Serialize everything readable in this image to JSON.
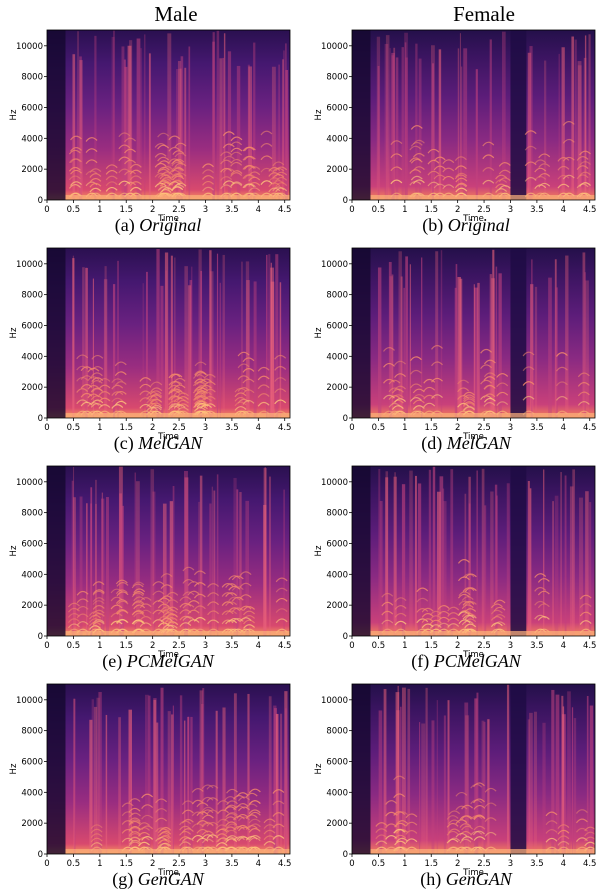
{
  "columns": [
    "Male",
    "Female"
  ],
  "chart_data": [
    {
      "type": "heatmap",
      "id": "a",
      "caption_label": "(a)",
      "caption_name": "Original",
      "voice": "male",
      "xlabel": "Time",
      "ylabel": "Hz",
      "xlim": [
        0,
        4.6
      ],
      "ylim": [
        0,
        11025
      ],
      "xticks": [
        "0",
        "0.5",
        "1",
        "1.5",
        "2",
        "2.5",
        "3",
        "3.5",
        "4",
        "4.5"
      ],
      "yticks": [
        "0",
        "2000",
        "4000",
        "6000",
        "8000",
        "10000"
      ],
      "colormap": "magma"
    },
    {
      "type": "heatmap",
      "id": "b",
      "caption_label": "(b)",
      "caption_name": "Original",
      "voice": "female",
      "xlabel": "Time",
      "ylabel": "Hz",
      "xlim": [
        0,
        4.6
      ],
      "ylim": [
        0,
        11025
      ],
      "xticks": [
        "0",
        "0.5",
        "1",
        "1.5",
        "2",
        "2.5",
        "3",
        "3.5",
        "4",
        "4.5"
      ],
      "yticks": [
        "0",
        "2000",
        "4000",
        "6000",
        "8000",
        "10000"
      ],
      "colormap": "magma"
    },
    {
      "type": "heatmap",
      "id": "c",
      "caption_label": "(c)",
      "caption_name": "MelGAN",
      "voice": "male",
      "xlabel": "Time",
      "ylabel": "Hz",
      "xlim": [
        0,
        4.6
      ],
      "ylim": [
        0,
        11025
      ],
      "xticks": [
        "0",
        "0.5",
        "1",
        "1.5",
        "2",
        "2.5",
        "3",
        "3.5",
        "4",
        "4.5"
      ],
      "yticks": [
        "0",
        "2000",
        "4000",
        "6000",
        "8000",
        "10000"
      ],
      "colormap": "magma"
    },
    {
      "type": "heatmap",
      "id": "d",
      "caption_label": "(d)",
      "caption_name": "MelGAN",
      "voice": "female",
      "xlabel": "Time",
      "ylabel": "Hz",
      "xlim": [
        0,
        4.6
      ],
      "ylim": [
        0,
        11025
      ],
      "xticks": [
        "0",
        "0.5",
        "1",
        "1.5",
        "2",
        "2.5",
        "3",
        "3.5",
        "4",
        "4.5"
      ],
      "yticks": [
        "0",
        "2000",
        "4000",
        "6000",
        "8000",
        "10000"
      ],
      "colormap": "magma"
    },
    {
      "type": "heatmap",
      "id": "e",
      "caption_label": "(e)",
      "caption_name": "PCMelGAN",
      "voice": "male",
      "xlabel": "Time",
      "ylabel": "Hz",
      "xlim": [
        0,
        4.6
      ],
      "ylim": [
        0,
        11025
      ],
      "xticks": [
        "0",
        "0.5",
        "1",
        "1.5",
        "2",
        "2.5",
        "3",
        "3.5",
        "4",
        "4.5"
      ],
      "yticks": [
        "0",
        "2000",
        "4000",
        "6000",
        "8000",
        "10000"
      ],
      "colormap": "magma"
    },
    {
      "type": "heatmap",
      "id": "f",
      "caption_label": "(f)",
      "caption_name": "PCMelGAN",
      "voice": "female",
      "xlabel": "Time",
      "ylabel": "Hz",
      "xlim": [
        0,
        4.6
      ],
      "ylim": [
        0,
        11025
      ],
      "xticks": [
        "0",
        "0.5",
        "1",
        "1.5",
        "2",
        "2.5",
        "3",
        "3.5",
        "4",
        "4.5"
      ],
      "yticks": [
        "0",
        "2000",
        "4000",
        "6000",
        "8000",
        "10000"
      ],
      "colormap": "magma"
    },
    {
      "type": "heatmap",
      "id": "g",
      "caption_label": "(g)",
      "caption_name": "GenGAN",
      "voice": "male",
      "xlabel": "Time",
      "ylabel": "Hz",
      "xlim": [
        0,
        4.6
      ],
      "ylim": [
        0,
        11025
      ],
      "xticks": [
        "0",
        "0.5",
        "1",
        "1.5",
        "2",
        "2.5",
        "3",
        "3.5",
        "4",
        "4.5"
      ],
      "yticks": [
        "0",
        "2000",
        "4000",
        "6000",
        "8000",
        "10000"
      ],
      "colormap": "magma"
    },
    {
      "type": "heatmap",
      "id": "h",
      "caption_label": "(h)",
      "caption_name": "GenGAN",
      "voice": "female",
      "xlabel": "Time",
      "ylabel": "Hz",
      "xlim": [
        0,
        4.6
      ],
      "ylim": [
        0,
        11025
      ],
      "xticks": [
        "0",
        "0.5",
        "1",
        "1.5",
        "2",
        "2.5",
        "3",
        "3.5",
        "4",
        "4.5"
      ],
      "yticks": [
        "0",
        "2000",
        "4000",
        "6000",
        "8000",
        "10000"
      ],
      "colormap": "magma"
    }
  ]
}
